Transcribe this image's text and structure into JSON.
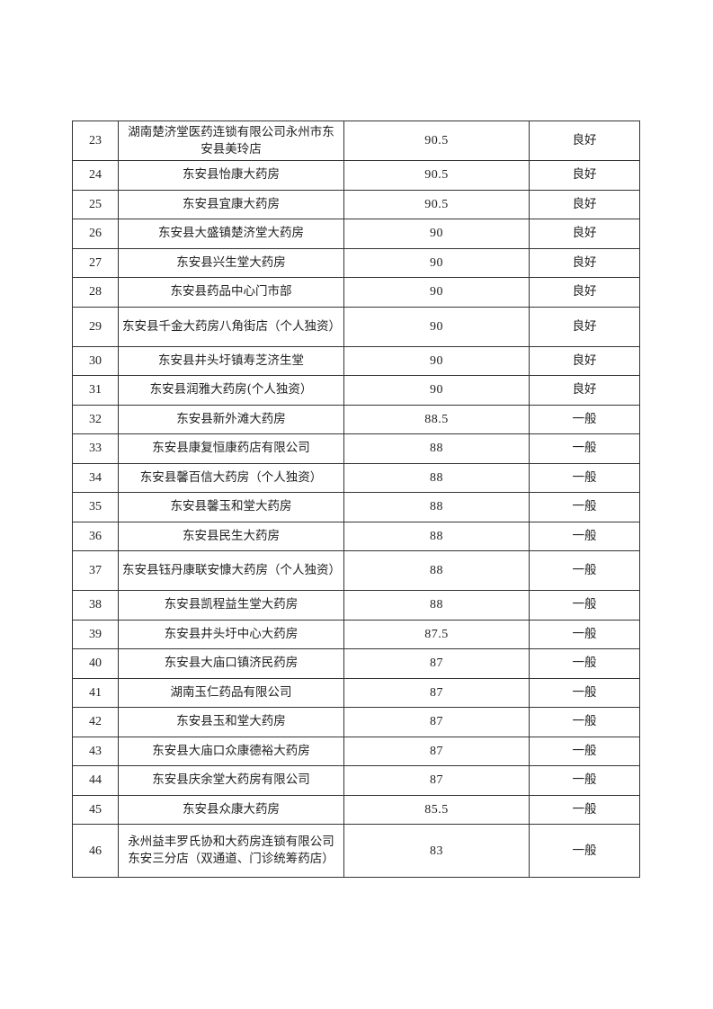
{
  "rows": [
    {
      "no": "23",
      "name": "湖南楚济堂医药连锁有限公司永州市东安县美玲店",
      "score": "90.5",
      "grade": "良好",
      "lines": 2
    },
    {
      "no": "24",
      "name": "东安县怡康大药房",
      "score": "90.5",
      "grade": "良好",
      "lines": 1
    },
    {
      "no": "25",
      "name": "东安县宜康大药房",
      "score": "90.5",
      "grade": "良好",
      "lines": 1
    },
    {
      "no": "26",
      "name": "东安县大盛镇楚济堂大药房",
      "score": "90",
      "grade": "良好",
      "lines": 1
    },
    {
      "no": "27",
      "name": "东安县兴生堂大药房",
      "score": "90",
      "grade": "良好",
      "lines": 1
    },
    {
      "no": "28",
      "name": "东安县药品中心门市部",
      "score": "90",
      "grade": "良好",
      "lines": 1
    },
    {
      "no": "29",
      "name": "东安县千金大药房八角街店（个人独资）",
      "score": "90",
      "grade": "良好",
      "lines": 2
    },
    {
      "no": "30",
      "name": "东安县井头圩镇寿芝济生堂",
      "score": "90",
      "grade": "良好",
      "lines": 1
    },
    {
      "no": "31",
      "name": "东安县润雅大药房(个人独资）",
      "score": "90",
      "grade": "良好",
      "lines": 1
    },
    {
      "no": "32",
      "name": "东安县新外滩大药房",
      "score": "88.5",
      "grade": "一般",
      "lines": 1
    },
    {
      "no": "33",
      "name": "东安县康复恒康药店有限公司",
      "score": "88",
      "grade": "一般",
      "lines": 1
    },
    {
      "no": "34",
      "name": "东安县馨百信大药房（个人独资）",
      "score": "88",
      "grade": "一般",
      "lines": 1
    },
    {
      "no": "35",
      "name": "东安县馨玉和堂大药房",
      "score": "88",
      "grade": "一般",
      "lines": 1
    },
    {
      "no": "36",
      "name": "东安县民生大药房",
      "score": "88",
      "grade": "一般",
      "lines": 1
    },
    {
      "no": "37",
      "name": "东安县钰丹康联安慷大药房（个人独资）",
      "score": "88",
      "grade": "一般",
      "lines": 2
    },
    {
      "no": "38",
      "name": "东安县凯程益生堂大药房",
      "score": "88",
      "grade": "一般",
      "lines": 1
    },
    {
      "no": "39",
      "name": "东安县井头圩中心大药房",
      "score": "87.5",
      "grade": "一般",
      "lines": 1
    },
    {
      "no": "40",
      "name": "东安县大庙口镇济民药房",
      "score": "87",
      "grade": "一般",
      "lines": 1
    },
    {
      "no": "41",
      "name": "湖南玉仁药品有限公司",
      "score": "87",
      "grade": "一般",
      "lines": 1
    },
    {
      "no": "42",
      "name": "东安县玉和堂大药房",
      "score": "87",
      "grade": "一般",
      "lines": 1
    },
    {
      "no": "43",
      "name": "东安县大庙口众康德裕大药房",
      "score": "87",
      "grade": "一般",
      "lines": 1
    },
    {
      "no": "44",
      "name": "东安县庆余堂大药房有限公司",
      "score": "87",
      "grade": "一般",
      "lines": 1
    },
    {
      "no": "45",
      "name": "东安县众康大药房",
      "score": "85.5",
      "grade": "一般",
      "lines": 1
    },
    {
      "no": "46",
      "name": "永州益丰罗氏协和大药房连锁有限公司东安三分店（双通道、门诊统筹药店）",
      "score": "83",
      "grade": "一般",
      "lines": 3
    }
  ]
}
